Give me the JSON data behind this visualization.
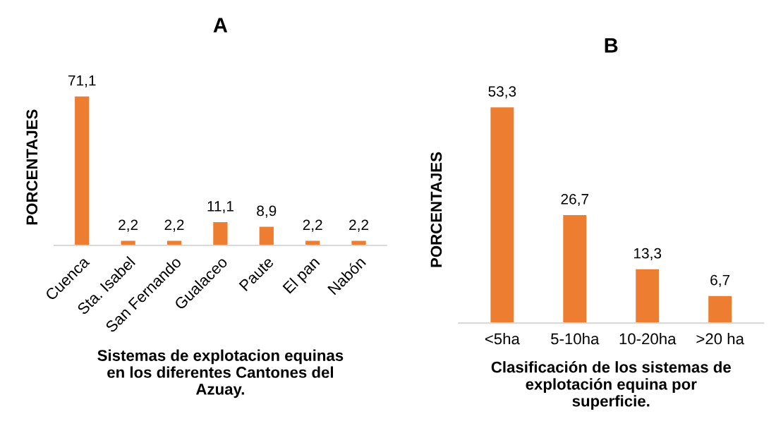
{
  "chart_data": [
    {
      "type": "bar",
      "title": "A",
      "ylabel": "PORCENTAJES",
      "xlabel": "Sistemas de explotacion equinas\nen los diferentes Cantones del\nAzuay.",
      "categories": [
        "Cuenca",
        "Sta. Isabel",
        "San Fernando",
        "Gualaceo",
        "Paute",
        "El pan",
        "Nabón"
      ],
      "values": [
        71.1,
        2.2,
        2.2,
        11.1,
        8.9,
        2.2,
        2.2
      ],
      "value_labels": [
        "71,1",
        "2,2",
        "2,2",
        "11,1",
        "8,9",
        "2,2",
        "2,2"
      ],
      "color": "#ed7d31",
      "tick_labels": "x"
    },
    {
      "type": "bar",
      "title": "B",
      "ylabel": "PORCENTAJES",
      "xlabel": "Clasificación de los sistemas de\nexplotación equina por\nsuperficie.",
      "categories": [
        "<5ha",
        "5-10ha",
        "10-20ha",
        ">20 ha"
      ],
      "values": [
        53.3,
        26.7,
        13.3,
        6.7
      ],
      "value_labels": [
        "53,3",
        "26,7",
        "13,3",
        "6,7"
      ],
      "color": "#ed7d31",
      "tick_labels": "x"
    }
  ]
}
